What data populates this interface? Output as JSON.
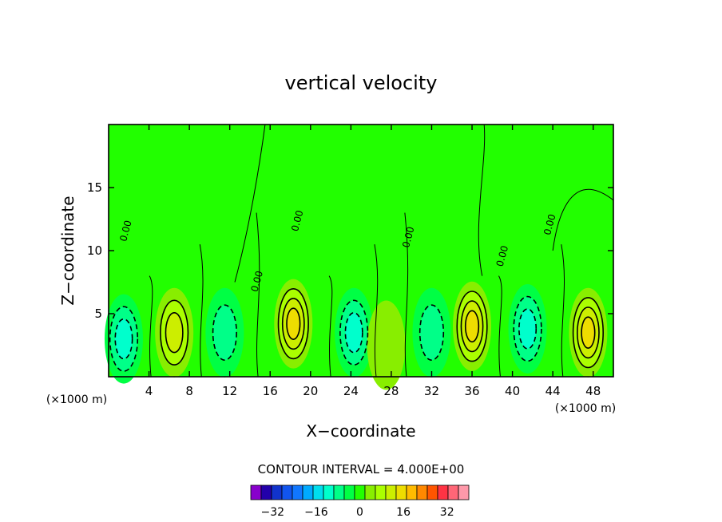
{
  "chart_data": {
    "type": "heatmap",
    "title": "vertical velocity",
    "xlabel": "X−coordinate",
    "ylabel": "Z−coordinate",
    "x_unit": "(×1000 m)",
    "y_unit": "(×1000 m)",
    "xlim": [
      0,
      50
    ],
    "ylim": [
      0,
      20
    ],
    "x_ticks": [
      4,
      8,
      12,
      16,
      20,
      24,
      28,
      32,
      36,
      40,
      44,
      48
    ],
    "y_ticks": [
      5,
      10,
      15
    ],
    "contour_interval_text": "CONTOUR INTERVAL = 4.000E+00",
    "contour_label": "0.00",
    "colorbar": {
      "levels": [
        -40,
        -36,
        -32,
        -28,
        -24,
        -20,
        -16,
        -12,
        -8,
        -4,
        0,
        4,
        8,
        12,
        16,
        20,
        24,
        28,
        32,
        36,
        40
      ],
      "tick_values": [
        -32,
        -16,
        0,
        16,
        32
      ],
      "tick_labels": [
        "−32",
        "−16",
        "0",
        "16",
        "32"
      ],
      "colors": [
        "#8800cc",
        "#2200aa",
        "#1133cc",
        "#1155ee",
        "#1177ff",
        "#00aaff",
        "#00ddee",
        "#00ffcc",
        "#00ff88",
        "#00ff44",
        "#22ff00",
        "#88ee00",
        "#aaff00",
        "#ccee00",
        "#eedd00",
        "#ffbb00",
        "#ff8800",
        "#ff5500",
        "#ff3344",
        "#ff6677",
        "#ff99aa"
      ]
    },
    "features": [
      {
        "x": 1.5,
        "z": 3.0,
        "w": -12
      },
      {
        "x": 6.5,
        "z": 3.5,
        "w": 12
      },
      {
        "x": 11.5,
        "z": 3.5,
        "w": -8
      },
      {
        "x": 18.3,
        "z": 4.2,
        "w": 16
      },
      {
        "x": 24.3,
        "z": 3.5,
        "w": -12
      },
      {
        "x": 27.5,
        "z": 2.5,
        "w": 4
      },
      {
        "x": 32.0,
        "z": 3.5,
        "w": -8
      },
      {
        "x": 36.0,
        "z": 4.0,
        "w": 16
      },
      {
        "x": 41.5,
        "z": 3.8,
        "w": -12
      },
      {
        "x": 47.5,
        "z": 3.5,
        "w": 16
      }
    ]
  }
}
